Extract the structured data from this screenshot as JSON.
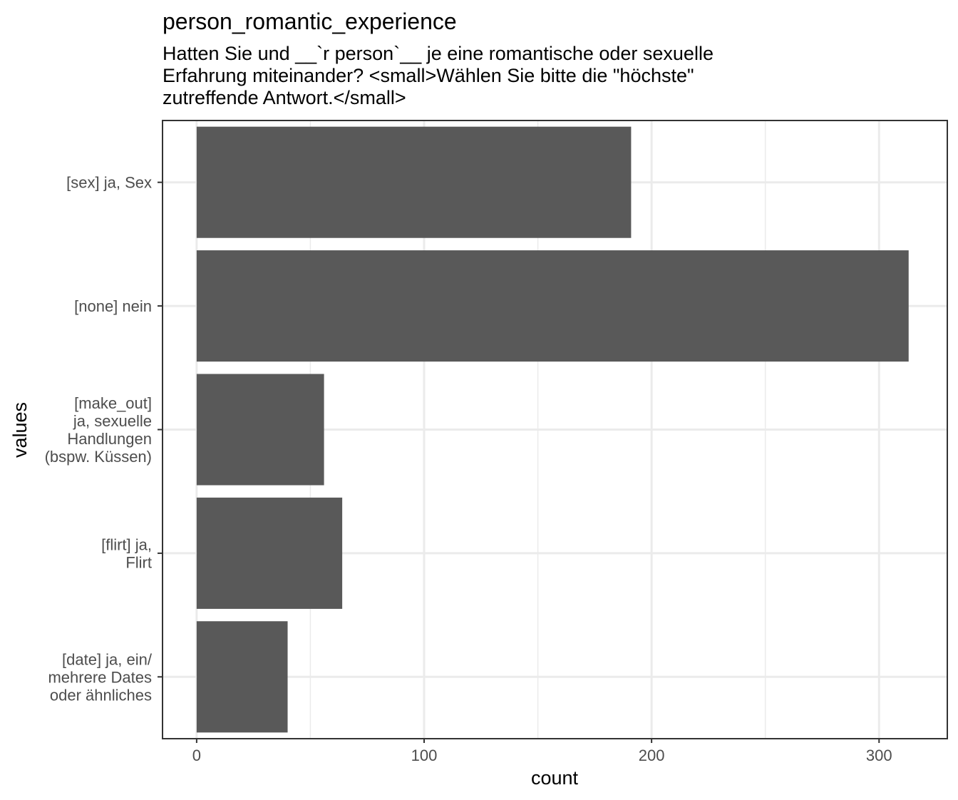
{
  "chart_data": {
    "type": "bar",
    "orientation": "horizontal",
    "title": "person_romantic_experience",
    "subtitle": "Hatten Sie und __`r person`__ je eine romantische oder sexuelle Erfahrung miteinander? <small>Wählen Sie bitte die \"höchste\" zutreffende Antwort.</small>",
    "subtitle_lines": [
      "Hatten Sie und __`r person`__ je eine romantische oder sexuelle",
      "Erfahrung miteinander? <small>Wählen Sie bitte die \"höchste\"",
      "zutreffende Antwort.</small>"
    ],
    "xlabel": "count",
    "ylabel": "values",
    "xlim": [
      -15,
      330
    ],
    "x_ticks": [
      0,
      100,
      200,
      300
    ],
    "categories": [
      "[sex] ja, Sex",
      "[none] nein",
      "[make_out] ja, sexuelle Handlungen (bspw. Küssen)",
      "[flirt] ja, Flirt",
      "[date] ja, ein/ mehrere Dates oder ähnliches"
    ],
    "category_label_lines": [
      [
        "[sex] ja, Sex"
      ],
      [
        "[none] nein"
      ],
      [
        "[make_out]",
        "ja, sexuelle",
        "Handlungen",
        "(bspw. Küssen)"
      ],
      [
        "[flirt] ja,",
        "Flirt"
      ],
      [
        "[date] ja, ein/",
        "mehrere Dates",
        "oder ähnliches"
      ]
    ],
    "values": [
      191,
      313,
      56,
      64,
      40
    ],
    "bar_color": "#595959",
    "grid": true,
    "legend": "none",
    "theme": "bw"
  }
}
